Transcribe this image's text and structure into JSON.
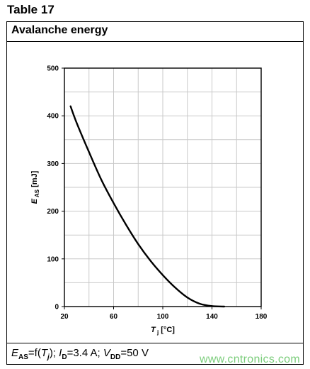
{
  "table_caption": "Table 17",
  "panel_title": "Avalanche energy",
  "footer": {
    "parts": [
      {
        "t": "E",
        "i": true
      },
      {
        "t": "AS",
        "sub": true
      },
      {
        "t": "=f("
      },
      {
        "t": "T",
        "i": true
      },
      {
        "t": "j",
        "sub": true,
        "i": true
      },
      {
        "t": "); "
      },
      {
        "t": "I",
        "i": true
      },
      {
        "t": "D",
        "sub": true
      },
      {
        "t": "=3.4 A; "
      },
      {
        "t": "V",
        "i": true
      },
      {
        "t": "DD",
        "sub": true
      },
      {
        "t": "=50 V"
      }
    ]
  },
  "watermark": "www.cntronics.com",
  "chart_data": {
    "type": "line",
    "xlabel": "Tj [°C]",
    "ylabel": "EAS [mJ]",
    "xlim": [
      20,
      180
    ],
    "ylim": [
      0,
      500
    ],
    "xticks": [
      20,
      60,
      100,
      140,
      180
    ],
    "yticks": [
      0,
      100,
      200,
      300,
      400,
      500
    ],
    "x_minor_step": 20,
    "y_minor_step": 50,
    "grid": true,
    "series": [
      {
        "x": [
          25,
          30,
          40,
          50,
          60,
          70,
          80,
          90,
          100,
          110,
          120,
          130,
          140,
          150
        ],
        "values": [
          420,
          385,
          324,
          266,
          217,
          172,
          131,
          96,
          66,
          40,
          19,
          6,
          1,
          0
        ]
      }
    ]
  }
}
